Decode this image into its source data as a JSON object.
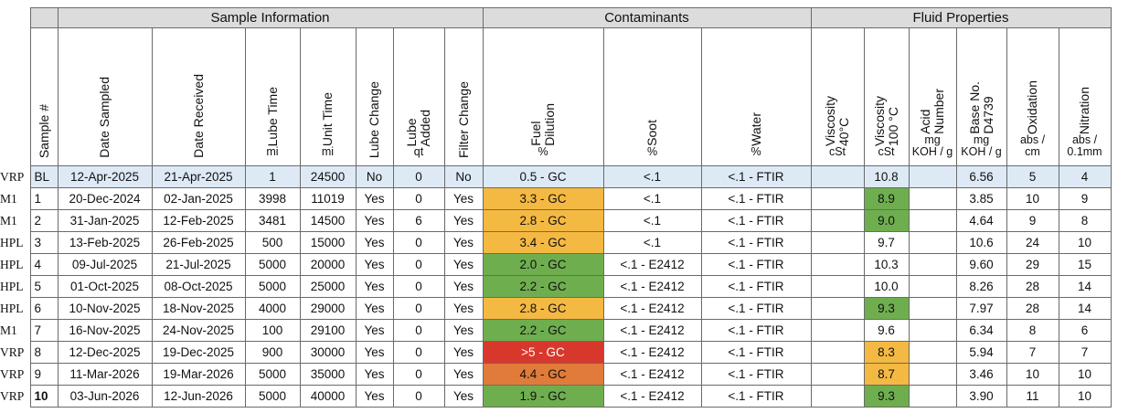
{
  "groups": {
    "sample_information": "Sample Information",
    "contaminants": "Contaminants",
    "fluid_properties": "Fluid Properties"
  },
  "columns": [
    {
      "title": "Sample #",
      "unit": ""
    },
    {
      "title": "Date Sampled",
      "unit": ""
    },
    {
      "title": "Date  Received",
      "unit": ""
    },
    {
      "title": "Lube Time",
      "unit": "mi"
    },
    {
      "title": "Unit Time",
      "unit": "mi"
    },
    {
      "title": "Lube Change",
      "unit": ""
    },
    {
      "title": "Lube\nAdded",
      "unit": "qt"
    },
    {
      "title": "Filter Change",
      "unit": ""
    },
    {
      "title": "Fuel\nDilution",
      "unit": "%"
    },
    {
      "title": "Soot",
      "unit": "%"
    },
    {
      "title": "Water",
      "unit": "%"
    },
    {
      "title": "Viscosity\n40°C",
      "unit": "cSt"
    },
    {
      "title": "Viscosity\n100 °C",
      "unit": "cSt"
    },
    {
      "title": "Acid\nNumber",
      "unit": "mg\nKOH / g"
    },
    {
      "title": "Base No.\nD4739",
      "unit": "mg\nKOH / g"
    },
    {
      "title": "Oxidation",
      "unit": "abs /\ncm"
    },
    {
      "title": "Nitration",
      "unit": "abs /\n0.1mm"
    }
  ],
  "colors": {
    "header_gray": "#dcdcdc",
    "baseline_blue": "#ddeaf6",
    "orange": "#f4b942",
    "green": "#6fae4f",
    "red": "#d8382c",
    "dark_orange": "#e07b39"
  },
  "rows": [
    {
      "label": "VRP",
      "sample": "BL",
      "date_sampled": "12-Apr-2025",
      "date_received": "21-Apr-2025",
      "lube_time": "1",
      "unit_time": "24500",
      "lube_change": "No",
      "lube_added": "0",
      "filter_change": "No",
      "fuel_dilution": "0.5 - GC",
      "soot": "<.1",
      "water": "<.1 - FTIR",
      "visc40": "",
      "visc100": "10.8",
      "acid_number": "",
      "base_no": "6.56",
      "oxidation": "5",
      "nitration": "4",
      "fuel_status": "",
      "visc100_status": ""
    },
    {
      "label": "M1",
      "sample": "1",
      "date_sampled": "20-Dec-2024",
      "date_received": "02-Jan-2025",
      "lube_time": "3998",
      "unit_time": "11019",
      "lube_change": "Yes",
      "lube_added": "0",
      "filter_change": "Yes",
      "fuel_dilution": "3.3 - GC",
      "soot": "<.1",
      "water": "<.1 - FTIR",
      "visc40": "",
      "visc100": "8.9",
      "acid_number": "",
      "base_no": "3.85",
      "oxidation": "10",
      "nitration": "9",
      "fuel_status": "orange",
      "visc100_status": "green"
    },
    {
      "label": "M1",
      "sample": "2",
      "date_sampled": "31-Jan-2025",
      "date_received": "12-Feb-2025",
      "lube_time": "3481",
      "unit_time": "14500",
      "lube_change": "Yes",
      "lube_added": "6",
      "filter_change": "Yes",
      "fuel_dilution": "2.8 - GC",
      "soot": "<.1",
      "water": "<.1 - FTIR",
      "visc40": "",
      "visc100": "9.0",
      "acid_number": "",
      "base_no": "4.64",
      "oxidation": "9",
      "nitration": "8",
      "fuel_status": "orange",
      "visc100_status": "green"
    },
    {
      "label": "HPL",
      "sample": "3",
      "date_sampled": "13-Feb-2025",
      "date_received": "26-Feb-2025",
      "lube_time": "500",
      "unit_time": "15000",
      "lube_change": "Yes",
      "lube_added": "0",
      "filter_change": "Yes",
      "fuel_dilution": "3.4 - GC",
      "soot": "<.1",
      "water": "<.1 - FTIR",
      "visc40": "",
      "visc100": "9.7",
      "acid_number": "",
      "base_no": "10.6",
      "oxidation": "24",
      "nitration": "10",
      "fuel_status": "orange",
      "visc100_status": ""
    },
    {
      "label": "HPL",
      "sample": "4",
      "date_sampled": "09-Jul-2025",
      "date_received": "21-Jul-2025",
      "lube_time": "5000",
      "unit_time": "20000",
      "lube_change": "Yes",
      "lube_added": "0",
      "filter_change": "Yes",
      "fuel_dilution": "2.0 - GC",
      "soot": "<.1 - E2412",
      "water": "<.1 - FTIR",
      "visc40": "",
      "visc100": "10.3",
      "acid_number": "",
      "base_no": "9.60",
      "oxidation": "29",
      "nitration": "15",
      "fuel_status": "green",
      "visc100_status": ""
    },
    {
      "label": "HPL",
      "sample": "5",
      "date_sampled": "01-Oct-2025",
      "date_received": "08-Oct-2025",
      "lube_time": "5000",
      "unit_time": "25000",
      "lube_change": "Yes",
      "lube_added": "0",
      "filter_change": "Yes",
      "fuel_dilution": "2.2 - GC",
      "soot": "<.1 - E2412",
      "water": "<.1 - FTIR",
      "visc40": "",
      "visc100": "10.0",
      "acid_number": "",
      "base_no": "8.26",
      "oxidation": "28",
      "nitration": "14",
      "fuel_status": "green",
      "visc100_status": ""
    },
    {
      "label": "HPL",
      "sample": "6",
      "date_sampled": "10-Nov-2025",
      "date_received": "18-Nov-2025",
      "lube_time": "4000",
      "unit_time": "29000",
      "lube_change": "Yes",
      "lube_added": "0",
      "filter_change": "Yes",
      "fuel_dilution": "2.8 - GC",
      "soot": "<.1 - E2412",
      "water": "<.1 - FTIR",
      "visc40": "",
      "visc100": "9.3",
      "acid_number": "",
      "base_no": "7.97",
      "oxidation": "28",
      "nitration": "14",
      "fuel_status": "orange",
      "visc100_status": "green"
    },
    {
      "label": "M1",
      "sample": "7",
      "date_sampled": "16-Nov-2025",
      "date_received": "24-Nov-2025",
      "lube_time": "100",
      "unit_time": "29100",
      "lube_change": "Yes",
      "lube_added": "0",
      "filter_change": "Yes",
      "fuel_dilution": "2.2 - GC",
      "soot": "<.1 - E2412",
      "water": "<.1 - FTIR",
      "visc40": "",
      "visc100": "9.6",
      "acid_number": "",
      "base_no": "6.34",
      "oxidation": "8",
      "nitration": "6",
      "fuel_status": "green",
      "visc100_status": ""
    },
    {
      "label": "VRP",
      "sample": "8",
      "date_sampled": "12-Dec-2025",
      "date_received": "19-Dec-2025",
      "lube_time": "900",
      "unit_time": "30000",
      "lube_change": "Yes",
      "lube_added": "0",
      "filter_change": "Yes",
      "fuel_dilution": ">5 - GC",
      "soot": "<.1 - E2412",
      "water": "<.1 - FTIR",
      "visc40": "",
      "visc100": "8.3",
      "acid_number": "",
      "base_no": "5.94",
      "oxidation": "7",
      "nitration": "7",
      "fuel_status": "red",
      "visc100_status": "orange"
    },
    {
      "label": "VRP",
      "sample": "9",
      "date_sampled": "11-Mar-2026",
      "date_received": "19-Mar-2026",
      "lube_time": "5000",
      "unit_time": "35000",
      "lube_change": "Yes",
      "lube_added": "0",
      "filter_change": "Yes",
      "fuel_dilution": "4.4 - GC",
      "soot": "<.1 - E2412",
      "water": "<.1 - FTIR",
      "visc40": "",
      "visc100": "8.7",
      "acid_number": "",
      "base_no": "3.46",
      "oxidation": "10",
      "nitration": "10",
      "fuel_status": "darkorange",
      "visc100_status": "orange"
    },
    {
      "label": "VRP",
      "sample": "10",
      "date_sampled": "03-Jun-2026",
      "date_received": "12-Jun-2026",
      "lube_time": "5000",
      "unit_time": "40000",
      "lube_change": "Yes",
      "lube_added": "0",
      "filter_change": "Yes",
      "fuel_dilution": "1.9 - GC",
      "soot": "<.1 - E2412",
      "water": "<.1 - FTIR",
      "visc40": "",
      "visc100": "9.3",
      "acid_number": "",
      "base_no": "3.90",
      "oxidation": "11",
      "nitration": "10",
      "fuel_status": "green",
      "visc100_status": "green"
    }
  ]
}
